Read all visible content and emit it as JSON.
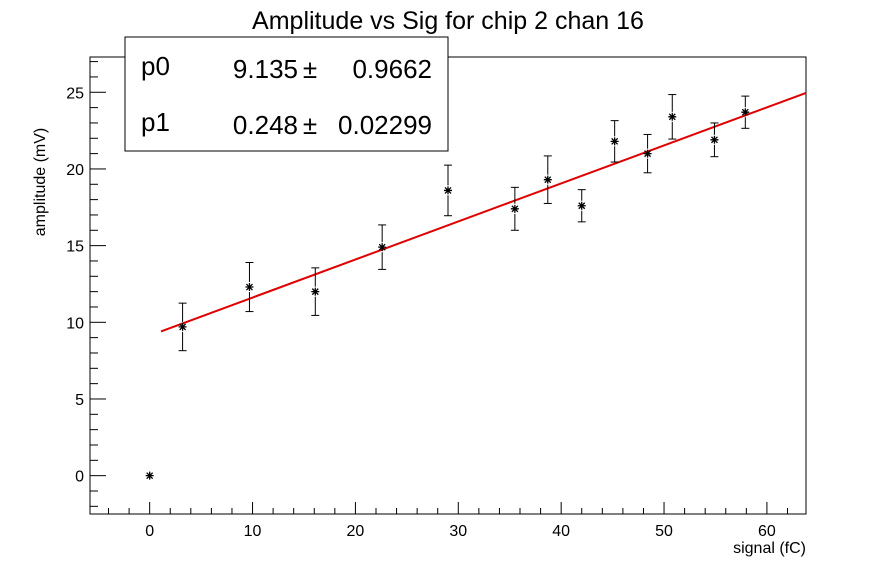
{
  "chart_data": {
    "type": "scatter",
    "title": "Amplitude vs Sig for chip 2 chan 16",
    "xlabel": "signal (fC)",
    "ylabel": "amplitude (mV)",
    "xlim": [
      -5.8,
      63.8
    ],
    "ylim": [
      -2.5,
      27.3
    ],
    "x_ticks": [
      0,
      10,
      20,
      30,
      40,
      50,
      60
    ],
    "y_ticks": [
      0,
      5,
      10,
      15,
      20,
      25
    ],
    "grid": false,
    "points": [
      {
        "x": 0.0,
        "y": 0.0,
        "err": 0.0
      },
      {
        "x": 3.2,
        "y": 9.7,
        "err": 1.55
      },
      {
        "x": 9.7,
        "y": 12.3,
        "err": 1.6
      },
      {
        "x": 16.1,
        "y": 12.0,
        "err": 1.55
      },
      {
        "x": 22.6,
        "y": 14.9,
        "err": 1.45
      },
      {
        "x": 29.0,
        "y": 18.6,
        "err": 1.65
      },
      {
        "x": 35.5,
        "y": 17.4,
        "err": 1.4
      },
      {
        "x": 38.7,
        "y": 19.3,
        "err": 1.55
      },
      {
        "x": 42.0,
        "y": 17.6,
        "err": 1.05
      },
      {
        "x": 45.2,
        "y": 21.8,
        "err": 1.35
      },
      {
        "x": 48.4,
        "y": 21.0,
        "err": 1.25
      },
      {
        "x": 50.8,
        "y": 23.4,
        "err": 1.45
      },
      {
        "x": 54.9,
        "y": 21.9,
        "err": 1.1
      },
      {
        "x": 57.9,
        "y": 23.7,
        "err": 1.05
      }
    ],
    "fit": {
      "x_range": [
        1.1,
        63.8
      ],
      "p0": 9.135,
      "p1": 0.248,
      "color": "#e00000"
    },
    "stats": [
      {
        "name": "p0",
        "value": "9.135",
        "error": "0.9662"
      },
      {
        "name": "p1",
        "value": "0.248",
        "error": "0.02299"
      }
    ],
    "pm_symbol": "±",
    "legend_position": "top-left"
  }
}
